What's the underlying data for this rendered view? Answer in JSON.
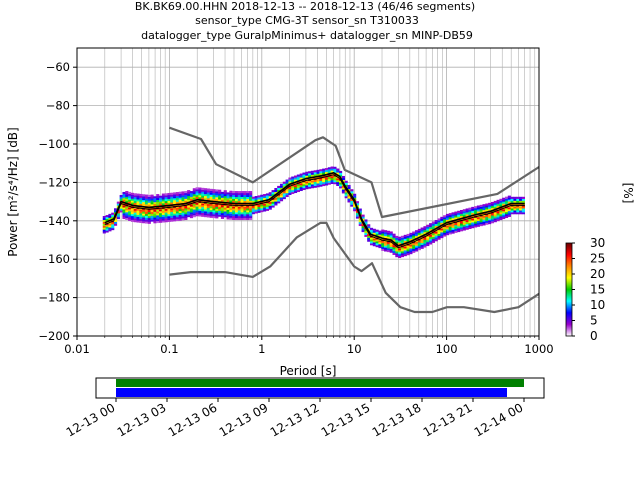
{
  "title_lines": [
    "BK.BK69.00.HHN   2018-12-13 -- 2018-12-13  (46/46 segments)",
    "sensor_type CMG-3T sensor_sn T310033",
    "datalogger_type GuralpMinimus+ datalogger_sn MINP-DB59"
  ],
  "chart_data": [
    {
      "type": "heatmap",
      "title": "",
      "xlabel": "Period [s]",
      "ylabel": "Power [m²/s⁴/Hz] [dB]",
      "x_scale": "log",
      "xlim": [
        0.01,
        1000
      ],
      "ylim": [
        -200,
        -50
      ],
      "x_ticks": [
        0.01,
        0.1,
        1,
        10,
        100,
        1000
      ],
      "x_tick_labels": [
        "0.01",
        "0.1",
        "1",
        "10",
        "100",
        "1000"
      ],
      "y_ticks": [
        -200,
        -180,
        -160,
        -140,
        -120,
        -100,
        -80,
        -60
      ],
      "y_tick_labels": [
        "−200",
        "−180",
        "−160",
        "−140",
        "−120",
        "−100",
        "−80",
        "−60"
      ],
      "grid": true,
      "colorbar": {
        "label": "[%]",
        "range": [
          0,
          30
        ],
        "ticks": [
          0,
          5,
          10,
          15,
          20,
          25,
          30
        ],
        "tick_labels": [
          "0",
          "5",
          "10",
          "15",
          "20",
          "25",
          "30"
        ],
        "colors": [
          "#ffffff",
          "#9900cc",
          "#0000ff",
          "#00ffff",
          "#00cc00",
          "#ffff00",
          "#ff8800",
          "#ff0000",
          "#660000"
        ]
      },
      "series": [
        {
          "name": "",
          "role": "noise-model-high",
          "color": "#666666",
          "x": [
            0.1,
            0.22,
            0.32,
            0.8,
            3.8,
            4.6,
            6.3,
            7.9,
            15.4,
            20,
            354.8,
            1000
          ],
          "y": [
            -91.5,
            -97.4,
            -110.5,
            -120,
            -98,
            -96.5,
            -101,
            -113.5,
            -120,
            -138,
            -126,
            -112
          ]
        },
        {
          "name": "",
          "role": "noise-model-low",
          "color": "#666666",
          "x": [
            0.1,
            0.17,
            0.4,
            0.8,
            1.24,
            2.4,
            4.3,
            5,
            6,
            10,
            12,
            15.6,
            21.9,
            31.6,
            45,
            70,
            101,
            154,
            328,
            600,
            1000
          ],
          "y": [
            -168,
            -166.7,
            -166.7,
            -169.2,
            -163.7,
            -148.6,
            -141.1,
            -141.1,
            -149,
            -163.8,
            -166.2,
            -162.1,
            -177.5,
            -185,
            -187.5,
            -187.5,
            -185,
            -185,
            -187.5,
            -185,
            -178
          ]
        },
        {
          "name": "",
          "role": "mean",
          "color": "#000000",
          "x": [
            0.02,
            0.025,
            0.03,
            0.04,
            0.06,
            0.1,
            0.15,
            0.2,
            0.3,
            0.5,
            0.8,
            1.2,
            2,
            3,
            4,
            5,
            6,
            7,
            8,
            10,
            12,
            15,
            20,
            25,
            30,
            40,
            60,
            100,
            200,
            300,
            500,
            700
          ],
          "y": [
            -141,
            -139,
            -130,
            -132,
            -133,
            -132,
            -131,
            -129,
            -130,
            -131,
            -131,
            -129,
            -121,
            -118,
            -117,
            -116,
            -115,
            -117,
            -122,
            -129,
            -139,
            -147,
            -149,
            -150,
            -153,
            -151,
            -147,
            -141,
            -137,
            -135,
            -131,
            -131
          ]
        },
        {
          "name": "",
          "role": "mode",
          "color": "#000000",
          "x": [
            0.02,
            0.025,
            0.03,
            0.04,
            0.06,
            0.1,
            0.15,
            0.2,
            0.3,
            0.5,
            0.8,
            1.2,
            2,
            3,
            4,
            5,
            6,
            7,
            8,
            10,
            12,
            15,
            20,
            25,
            30,
            40,
            60,
            100,
            200,
            300,
            500,
            700
          ],
          "y": [
            -142,
            -140,
            -131,
            -133,
            -134,
            -133,
            -132,
            -130,
            -131,
            -132,
            -132,
            -130,
            -122,
            -119,
            -118,
            -117,
            -116,
            -118,
            -123,
            -130,
            -140,
            -148,
            -150,
            -151,
            -154,
            -152,
            -148,
            -142,
            -138,
            -136,
            -132,
            -132
          ]
        }
      ]
    },
    {
      "type": "bar",
      "title": "",
      "xlabel": "",
      "ylabel": "",
      "x_tick_labels": [
        "12-13 00",
        "12-13 03",
        "12-13 06",
        "12-13 09",
        "12-13 12",
        "12-13 15",
        "12-13 18",
        "12-13 21",
        "12-14 00"
      ],
      "series": [
        {
          "name": "",
          "color": "#008000",
          "start": "12-13 00",
          "end": "12-14 00"
        },
        {
          "name": "",
          "color": "#0000ff",
          "start": "12-13 00",
          "end": "12-13 23"
        }
      ]
    }
  ]
}
